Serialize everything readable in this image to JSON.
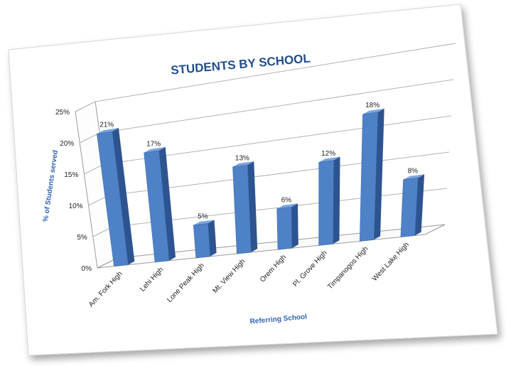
{
  "chart_data": {
    "type": "bar",
    "title": "STUDENTS BY SCHOOL",
    "xlabel": "Referring School",
    "ylabel": "% of Students served",
    "categories": [
      "Am. Fork High",
      "Lehi High",
      "Lone Peak High",
      "Mt. View High",
      "Orem High",
      "Pl. Grove High",
      "Timpanogos High",
      "West Lake High"
    ],
    "values": [
      21,
      17,
      5,
      13,
      6,
      12,
      18,
      8
    ],
    "data_labels": [
      "21%",
      "17%",
      "5%",
      "13%",
      "6%",
      "12%",
      "18%",
      "8%"
    ],
    "yticks": [
      "0%",
      "5%",
      "10%",
      "15%",
      "20%",
      "25%"
    ],
    "ylim": [
      0,
      25
    ],
    "grid": true,
    "legend": "none",
    "colors": {
      "bar_front": "#4f81c7",
      "bar_side": "#2d5490",
      "bar_top": "#7fa6dc",
      "title": "#1f4e8c",
      "axis_title": "#2f64b0"
    }
  }
}
